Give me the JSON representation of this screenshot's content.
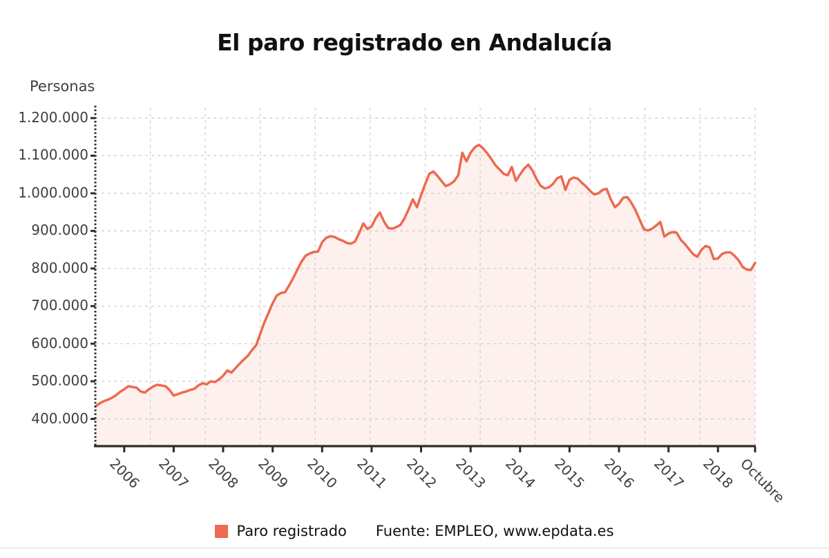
{
  "title": "El paro registrado en Andalucía",
  "y_axis_title": "Personas",
  "legend": {
    "series_label": "Paro registrado",
    "source": "Fuente: EMPLEO, www.epdata.es"
  },
  "colors": {
    "line": "#ec6a50",
    "area_fill": "rgba(236,106,80,0.10)",
    "legend_swatch": "#ee6a50",
    "grid": "#cccccc",
    "axis": "#2d2d2d",
    "label_text": "#3e3e3e"
  },
  "chart_data": {
    "type": "area",
    "title": "El paro registrado en Andalucía",
    "ylabel": "Personas",
    "periodicity": "monthly",
    "x_start": "mid 2005",
    "x_end": "Octubre 2018",
    "ylim": [
      330000,
      1230000
    ],
    "grid": true,
    "legend_position": "bottom",
    "y_tick_values": [
      400000,
      500000,
      600000,
      700000,
      800000,
      900000,
      1000000,
      1100000,
      1200000
    ],
    "y_tick_labels": [
      "400.000",
      "500.000",
      "600.000",
      "700.000",
      "800.000",
      "900.000",
      "1.000.000",
      "1.100.000",
      "1.200.000"
    ],
    "x_ticks": [
      {
        "label": "2006",
        "index": 7
      },
      {
        "label": "2007",
        "index": 19
      },
      {
        "label": "2008",
        "index": 31
      },
      {
        "label": "2009",
        "index": 43
      },
      {
        "label": "2010",
        "index": 55
      },
      {
        "label": "2011",
        "index": 67
      },
      {
        "label": "2012",
        "index": 79
      },
      {
        "label": "2013",
        "index": 91
      },
      {
        "label": "2014",
        "index": 103
      },
      {
        "label": "2015",
        "index": 115
      },
      {
        "label": "2016",
        "index": 127
      },
      {
        "label": "2017",
        "index": 139
      },
      {
        "label": "2018",
        "index": 151
      },
      {
        "label": "Octubre",
        "index": 160
      }
    ],
    "series": [
      {
        "name": "Paro registrado",
        "monthly_values": [
          433000,
          441000,
          447000,
          451000,
          456000,
          463000,
          472000,
          479000,
          487000,
          485000,
          483000,
          473000,
          470000,
          479000,
          486000,
          491000,
          489000,
          487000,
          477000,
          462000,
          466000,
          470000,
          473000,
          477000,
          480000,
          489000,
          495000,
          492000,
          500000,
          498000,
          505000,
          515000,
          529000,
          523000,
          535000,
          547000,
          558000,
          568000,
          583000,
          596000,
          627000,
          657000,
          682000,
          708000,
          728000,
          735000,
          737000,
          755000,
          775000,
          797000,
          818000,
          834000,
          840000,
          844000,
          845000,
          870000,
          882000,
          886000,
          884000,
          878000,
          874000,
          868000,
          866000,
          872000,
          895000,
          920000,
          905000,
          912000,
          934000,
          949000,
          925000,
          908000,
          906000,
          910000,
          916000,
          934000,
          958000,
          984000,
          963000,
          995000,
          1025000,
          1052000,
          1058000,
          1046000,
          1032000,
          1019000,
          1024000,
          1032000,
          1048000,
          1108000,
          1085000,
          1108000,
          1122000,
          1129000,
          1120000,
          1107000,
          1092000,
          1075000,
          1064000,
          1052000,
          1048000,
          1070000,
          1033000,
          1050000,
          1066000,
          1076000,
          1061000,
          1038000,
          1020000,
          1013000,
          1016000,
          1025000,
          1040000,
          1045000,
          1009000,
          1036000,
          1042000,
          1039000,
          1028000,
          1018000,
          1006000,
          997000,
          1000000,
          1009000,
          1012000,
          984000,
          963000,
          972000,
          988000,
          990000,
          975000,
          955000,
          930000,
          905000,
          901000,
          906000,
          914000,
          924000,
          885000,
          893000,
          897000,
          895000,
          876000,
          865000,
          851000,
          838000,
          831000,
          850000,
          860000,
          856000,
          825000,
          827000,
          839000,
          843000,
          843000,
          834000,
          822000,
          804000,
          797000,
          796000,
          815000
        ]
      }
    ]
  }
}
